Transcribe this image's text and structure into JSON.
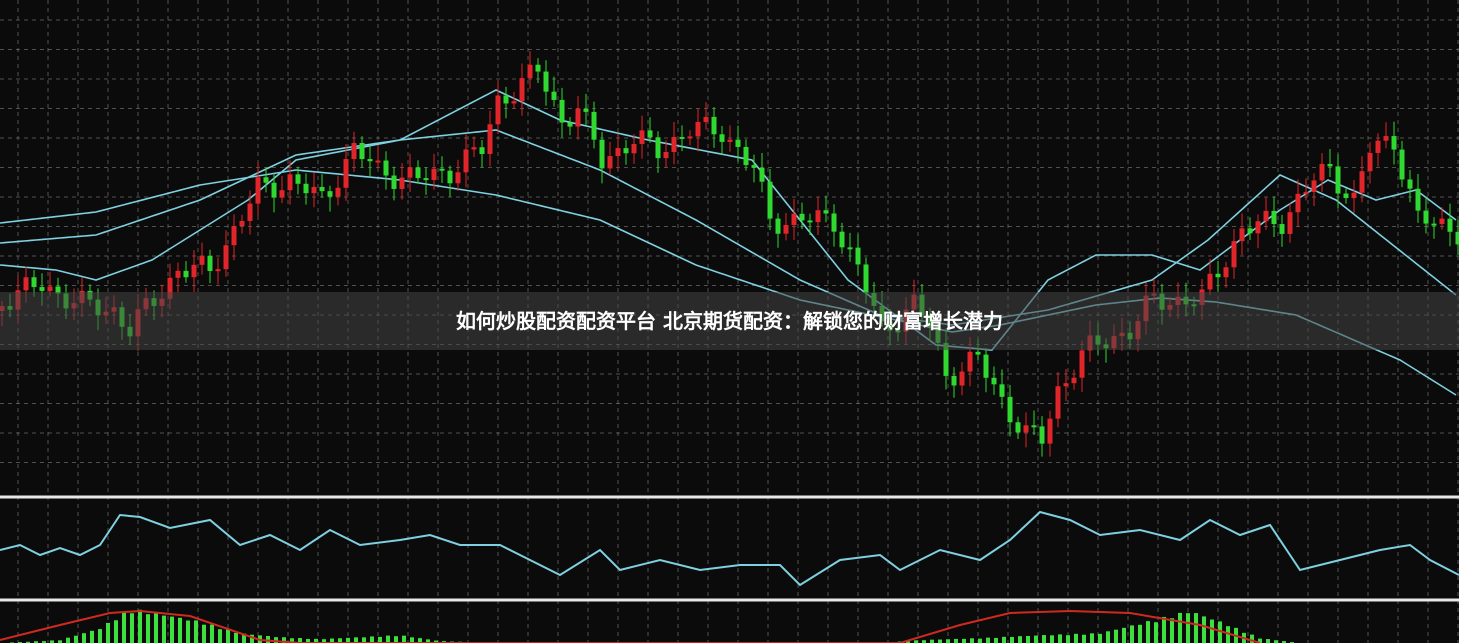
{
  "title": "如何炒股配资配资平台 北京期货配资：解锁您的财富增长潜力",
  "colors": {
    "background": "#0b0b0b",
    "grid": "#8a8a8a",
    "up": "#e0262a",
    "down": "#2fd92f",
    "ma": "#7fd0e0",
    "oscillator": "#7fd0e0",
    "histogram": "#3ee03e",
    "signal": "#d02a20",
    "separator": "#e8e8e8"
  },
  "chart_data": [
    {
      "type": "candlestick",
      "panel": "price",
      "grid": true,
      "ylim": [
        20,
        500
      ],
      "close_path": [
        [
          0,
          300
        ],
        [
          5,
          285
        ],
        [
          10,
          305
        ],
        [
          14,
          310
        ],
        [
          16,
          330
        ],
        [
          19,
          300
        ],
        [
          22,
          270
        ],
        [
          26,
          270
        ],
        [
          29,
          230
        ],
        [
          32,
          190
        ],
        [
          36,
          180
        ],
        [
          40,
          200
        ],
        [
          44,
          150
        ],
        [
          47,
          170
        ],
        [
          52,
          180
        ],
        [
          56,
          170
        ],
        [
          60,
          150
        ],
        [
          62,
          100
        ],
        [
          65,
          85
        ],
        [
          67,
          70
        ],
        [
          70,
          120
        ],
        [
          72,
          110
        ],
        [
          75,
          160
        ],
        [
          79,
          140
        ],
        [
          82,
          150
        ],
        [
          86,
          130
        ],
        [
          90,
          130
        ],
        [
          94,
          170
        ],
        [
          96,
          220
        ],
        [
          100,
          220
        ],
        [
          104,
          220
        ],
        [
          107,
          270
        ],
        [
          110,
          330
        ],
        [
          114,
          305
        ],
        [
          116,
          325
        ],
        [
          118,
          375
        ],
        [
          122,
          360
        ],
        [
          125,
          400
        ],
        [
          128,
          435
        ],
        [
          130,
          440
        ],
        [
          132,
          390
        ],
        [
          135,
          355
        ],
        [
          138,
          340
        ],
        [
          141,
          330
        ],
        [
          144,
          300
        ],
        [
          150,
          300
        ],
        [
          152,
          270
        ],
        [
          155,
          230
        ],
        [
          160,
          220
        ],
        [
          164,
          180
        ],
        [
          166,
          170
        ],
        [
          169,
          200
        ],
        [
          171,
          150
        ],
        [
          174,
          140
        ],
        [
          177,
          220
        ],
        [
          182,
          230
        ],
        [
          185,
          300
        ],
        [
          188,
          320
        ],
        [
          191,
          340
        ],
        [
          194,
          370
        ],
        [
          198,
          375
        ],
        [
          200,
          340
        ]
      ],
      "moving_averages": [
        [
          [
            0,
            285
          ],
          [
            7,
            290
          ],
          [
            12,
            300
          ],
          [
            19,
            280
          ],
          [
            31,
            220
          ],
          [
            37,
            180
          ],
          [
            50,
            160
          ],
          [
            62,
            110
          ],
          [
            70,
            140
          ],
          [
            81,
            160
          ],
          [
            94,
            180
          ],
          [
            106,
            300
          ],
          [
            117,
            365
          ],
          [
            124,
            370
          ],
          [
            131,
            300
          ],
          [
            137,
            275
          ],
          [
            144,
            275
          ],
          [
            150,
            290
          ],
          [
            160,
            230
          ],
          [
            166,
            200
          ],
          [
            172,
            220
          ],
          [
            177,
            210
          ],
          [
            182,
            240
          ]
        ],
        [
          [
            0,
            263
          ],
          [
            12,
            255
          ],
          [
            25,
            220
          ],
          [
            37,
            175
          ],
          [
            50,
            160
          ],
          [
            62,
            150
          ],
          [
            75,
            190
          ],
          [
            87,
            240
          ],
          [
            100,
            300
          ],
          [
            110,
            335
          ],
          [
            119,
            345
          ],
          [
            131,
            330
          ],
          [
            144,
            300
          ],
          [
            151,
            260
          ],
          [
            160,
            195
          ],
          [
            167,
            220
          ],
          [
            182,
            315
          ]
        ],
        [
          [
            0,
            243
          ],
          [
            12,
            232
          ],
          [
            25,
            205
          ],
          [
            37,
            190
          ],
          [
            50,
            200
          ],
          [
            62,
            215
          ],
          [
            75,
            240
          ],
          [
            87,
            285
          ],
          [
            100,
            320
          ],
          [
            112,
            340
          ],
          [
            119,
            352
          ],
          [
            125,
            345
          ],
          [
            137,
            325
          ],
          [
            145,
            318
          ],
          [
            152,
            322
          ],
          [
            162,
            335
          ],
          [
            175,
            380
          ],
          [
            182,
            415
          ]
        ]
      ]
    },
    {
      "type": "line",
      "panel": "oscillator",
      "grid": true,
      "ylim": [
        0,
        100
      ],
      "values": [
        [
          0,
          50
        ],
        [
          20,
          55
        ],
        [
          40,
          45
        ],
        [
          60,
          52
        ],
        [
          80,
          45
        ],
        [
          100,
          55
        ],
        [
          120,
          85
        ],
        [
          140,
          83
        ],
        [
          170,
          72
        ],
        [
          210,
          80
        ],
        [
          240,
          55
        ],
        [
          270,
          65
        ],
        [
          300,
          50
        ],
        [
          330,
          70
        ],
        [
          360,
          55
        ],
        [
          400,
          60
        ],
        [
          430,
          65
        ],
        [
          460,
          55
        ],
        [
          500,
          55
        ],
        [
          530,
          40
        ],
        [
          560,
          25
        ],
        [
          600,
          50
        ],
        [
          620,
          30
        ],
        [
          660,
          40
        ],
        [
          700,
          30
        ],
        [
          740,
          35
        ],
        [
          780,
          35
        ],
        [
          800,
          15
        ],
        [
          840,
          40
        ],
        [
          880,
          45
        ],
        [
          900,
          30
        ],
        [
          940,
          50
        ],
        [
          980,
          40
        ],
        [
          1010,
          60
        ],
        [
          1040,
          88
        ],
        [
          1070,
          80
        ],
        [
          1100,
          65
        ],
        [
          1140,
          70
        ],
        [
          1180,
          60
        ],
        [
          1210,
          80
        ],
        [
          1240,
          65
        ],
        [
          1270,
          75
        ],
        [
          1300,
          30
        ],
        [
          1340,
          40
        ],
        [
          1380,
          50
        ],
        [
          1410,
          55
        ],
        [
          1430,
          40
        ],
        [
          1459,
          25
        ]
      ]
    },
    {
      "type": "bar+line",
      "panel": "macd",
      "grid": true,
      "ylim": [
        0,
        40
      ],
      "histogram": [
        [
          0,
          0
        ],
        [
          60,
          3
        ],
        [
          100,
          15
        ],
        [
          130,
          35
        ],
        [
          160,
          30
        ],
        [
          200,
          22
        ],
        [
          240,
          10
        ],
        [
          280,
          6
        ],
        [
          320,
          4
        ],
        [
          400,
          8
        ],
        [
          440,
          2
        ],
        [
          500,
          0
        ],
        [
          880,
          0
        ],
        [
          920,
          3
        ],
        [
          980,
          5
        ],
        [
          1040,
          8
        ],
        [
          1100,
          10
        ],
        [
          1160,
          25
        ],
        [
          1190,
          33
        ],
        [
          1220,
          22
        ],
        [
          1260,
          5
        ],
        [
          1300,
          0
        ],
        [
          1459,
          0
        ]
      ],
      "signal": [
        [
          0,
          3
        ],
        [
          60,
          18
        ],
        [
          110,
          30
        ],
        [
          140,
          32
        ],
        [
          190,
          27
        ],
        [
          260,
          3
        ],
        [
          300,
          0
        ],
        [
          900,
          0
        ],
        [
          960,
          18
        ],
        [
          1010,
          30
        ],
        [
          1070,
          32
        ],
        [
          1130,
          30
        ],
        [
          1200,
          18
        ],
        [
          1260,
          0
        ]
      ]
    }
  ]
}
